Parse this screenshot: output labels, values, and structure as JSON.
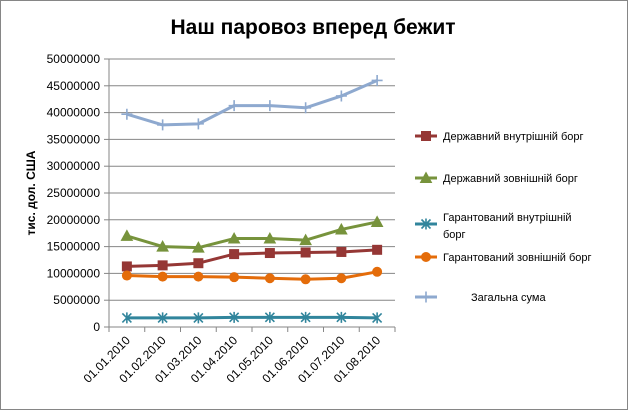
{
  "chart_data": {
    "type": "line",
    "title": "Наш паровоз вперед бежит",
    "ylabel": "тис. дол. США",
    "xlabel": "",
    "ylim": [
      0,
      50000000
    ],
    "yticks": [
      0,
      5000000,
      10000000,
      15000000,
      20000000,
      25000000,
      30000000,
      35000000,
      40000000,
      45000000,
      50000000
    ],
    "grid": true,
    "legend": "right",
    "categories": [
      "01.01.2010",
      "01.02.2010",
      "01.03.2010",
      "01.04.2010",
      "01.05.2010",
      "01.06.2010",
      "01.07.2010",
      "01.08.2010"
    ],
    "series": [
      {
        "name": "Державний внутрішній борг",
        "legend_lines": [
          "Державний внутрішній борг"
        ],
        "color": "#953735",
        "marker": "square",
        "values": [
          11300000,
          11500000,
          11900000,
          13600000,
          13800000,
          13900000,
          14000000,
          14400000
        ]
      },
      {
        "name": "Державний зовнішній борг",
        "legend_lines": [
          "Державний зовнішній борг"
        ],
        "color": "#77933C",
        "marker": "triangle",
        "values": [
          17000000,
          15000000,
          14800000,
          16500000,
          16500000,
          16200000,
          18200000,
          19600000
        ]
      },
      {
        "name": "Гарантований  внутрішній борг",
        "legend_lines": [
          "Гарантований  внутрішній",
          "борг"
        ],
        "color": "#31859C",
        "marker": "star",
        "values": [
          1700000,
          1700000,
          1700000,
          1800000,
          1800000,
          1800000,
          1800000,
          1700000
        ]
      },
      {
        "name": "Гарантований  зовнішній борг",
        "legend_lines": [
          "Гарантований  зовнішній борг"
        ],
        "color": "#E46C0A",
        "marker": "circle",
        "values": [
          9600000,
          9400000,
          9400000,
          9300000,
          9100000,
          8900000,
          9100000,
          10300000
        ]
      },
      {
        "name": "Загальна сума",
        "legend_lines": [
          "Загальна сума"
        ],
        "color": "#8EA9CF",
        "marker": "plus",
        "values": [
          39700000,
          37700000,
          37900000,
          41300000,
          41300000,
          40900000,
          43100000,
          46000000
        ]
      }
    ]
  }
}
